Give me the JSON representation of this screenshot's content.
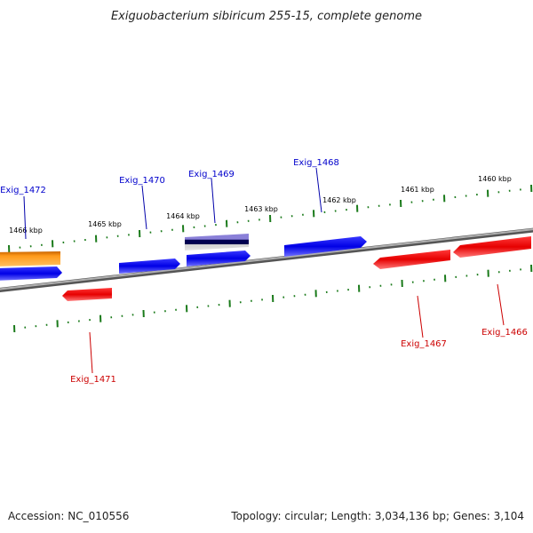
{
  "title": "Exiguobacterium sibiricum 255-15, complete genome",
  "footer": {
    "accession": "Accession: NC_010556",
    "topology": "Topology: circular; Length: 3,034,136 bp; Genes: 3,104"
  },
  "colors": {
    "forward": "#0000ee",
    "reverse": "#ee0000",
    "highlight": "#ff8c00",
    "tick": "#1a7a1a",
    "backbone": "#888888"
  },
  "kbp_ticks": [
    "1460 kbp",
    "1461 kbp",
    "1462 kbp",
    "1463 kbp",
    "1464 kbp",
    "1465 kbp",
    "1466 kbp"
  ],
  "genes": [
    {
      "name": "Exig_1472",
      "strand": "forward",
      "color": "orange"
    },
    {
      "name": "Exig_1470",
      "strand": "forward",
      "color": "blue"
    },
    {
      "name": "Exig_1469",
      "strand": "forward",
      "color": "blue"
    },
    {
      "name": "Exig_1468",
      "strand": "forward",
      "color": "blue"
    },
    {
      "name": "Exig_1471",
      "strand": "reverse",
      "color": "red"
    },
    {
      "name": "Exig_1467",
      "strand": "reverse",
      "color": "red"
    },
    {
      "name": "Exig_1466",
      "strand": "reverse",
      "color": "red"
    }
  ]
}
